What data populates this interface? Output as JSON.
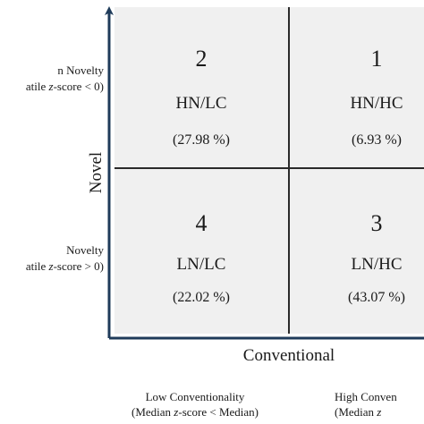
{
  "quadrants": {
    "q1": {
      "number": "1",
      "code": "HN/HC",
      "share": "(6.93 %)"
    },
    "q2": {
      "number": "2",
      "code": "HN/LC",
      "share": "(27.98 %)"
    },
    "q3": {
      "number": "3",
      "code": "LN/HC",
      "share": "(43.07 %)"
    },
    "q4": {
      "number": "4",
      "code": "LN/LC",
      "share": "(22.02 %)"
    }
  },
  "axes": {
    "y_title": "Novel",
    "x_title": "Conventional"
  },
  "side_labels": {
    "top_line1": "n Novelty",
    "top_line2_prefix": "atile ",
    "top_line2_italic": "z",
    "top_line2_suffix": "-score < 0)",
    "bottom_line1": "Novelty",
    "bottom_line2_prefix": "atile ",
    "bottom_line2_italic": "z",
    "bottom_line2_suffix": "-score > 0)"
  },
  "bottom_labels": {
    "left_line1": "Low Conventionality",
    "left_line2_prefix": "(Median ",
    "left_line2_italic": "z",
    "left_line2_suffix": "-score < Median)",
    "right_line1": "High Conven",
    "right_line2_prefix": "(Median ",
    "right_line2_italic": "z"
  },
  "colors": {
    "axis_arrow": "#1f3b5a",
    "grid_fill": "#f0f0f0",
    "divider": "#2a2a2a"
  }
}
